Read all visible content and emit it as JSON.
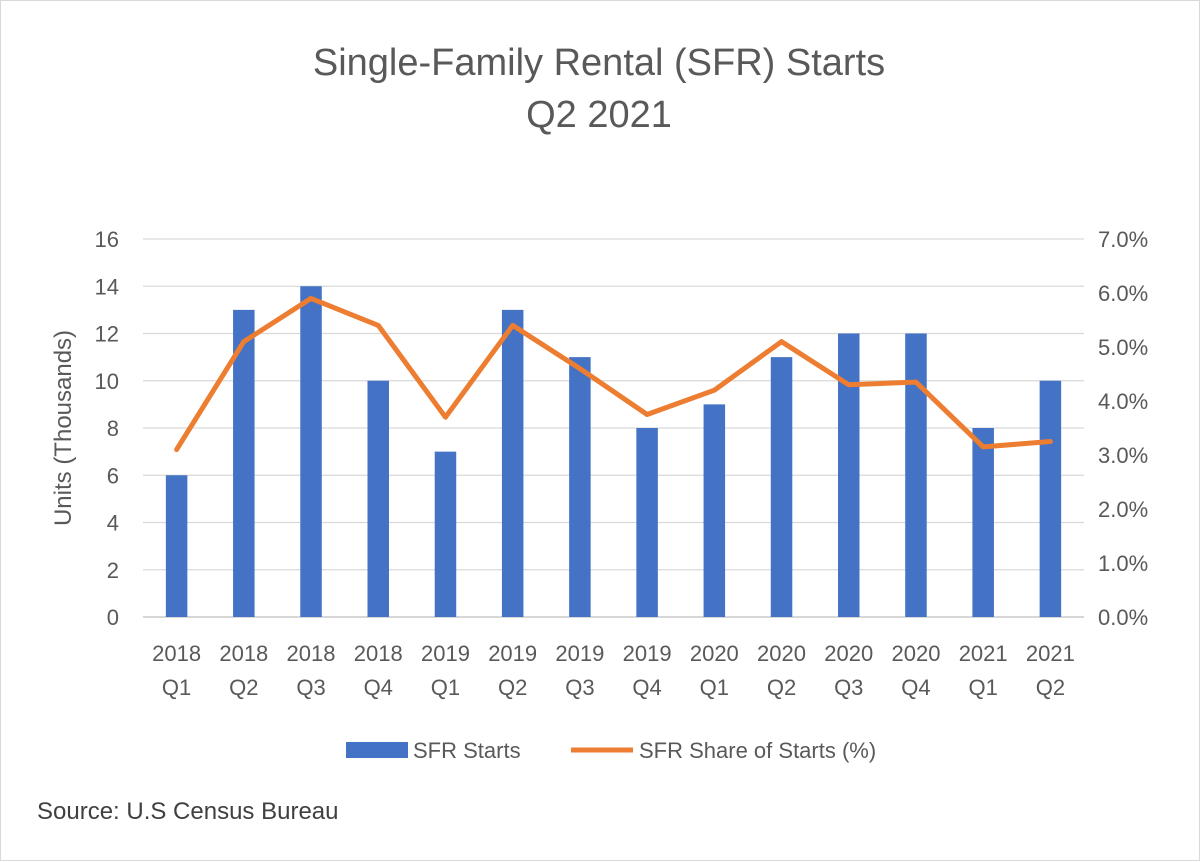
{
  "chart_data": {
    "type": "bar",
    "title": [
      "Single-Family Rental (SFR) Starts",
      "Q2 2021"
    ],
    "categories": [
      [
        "2018",
        "Q1"
      ],
      [
        "2018",
        "Q2"
      ],
      [
        "2018",
        "Q3"
      ],
      [
        "2018",
        "Q4"
      ],
      [
        "2019",
        "Q1"
      ],
      [
        "2019",
        "Q2"
      ],
      [
        "2019",
        "Q3"
      ],
      [
        "2019",
        "Q4"
      ],
      [
        "2020",
        "Q1"
      ],
      [
        "2020",
        "Q2"
      ],
      [
        "2020",
        "Q3"
      ],
      [
        "2020",
        "Q4"
      ],
      [
        "2021",
        "Q1"
      ],
      [
        "2021",
        "Q2"
      ]
    ],
    "ylabel": "Units (Thousands)",
    "ylim": [
      0,
      16
    ],
    "yticks": [
      "0",
      "2",
      "4",
      "6",
      "8",
      "10",
      "12",
      "14",
      "16"
    ],
    "y2lim": [
      0,
      7
    ],
    "y2ticks": [
      "0.0%",
      "1.0%",
      "2.0%",
      "3.0%",
      "4.0%",
      "5.0%",
      "6.0%",
      "7.0%"
    ],
    "grid": true,
    "legend_position": "bottom",
    "series": [
      {
        "name": "SFR Starts",
        "type": "bar",
        "axis": "left",
        "color": "#4472c4",
        "values": [
          6,
          13,
          14,
          10,
          7,
          13,
          11,
          8,
          9,
          11,
          12,
          12,
          8,
          10
        ]
      },
      {
        "name": "SFR Share of Starts (%)",
        "type": "line",
        "axis": "right",
        "color": "#ed7d31",
        "values": [
          3.1,
          5.1,
          5.9,
          5.4,
          3.7,
          5.4,
          4.6,
          3.75,
          4.2,
          5.1,
          4.3,
          4.35,
          3.15,
          3.25
        ]
      }
    ]
  },
  "source_note": "Source: U.S Census Bureau"
}
